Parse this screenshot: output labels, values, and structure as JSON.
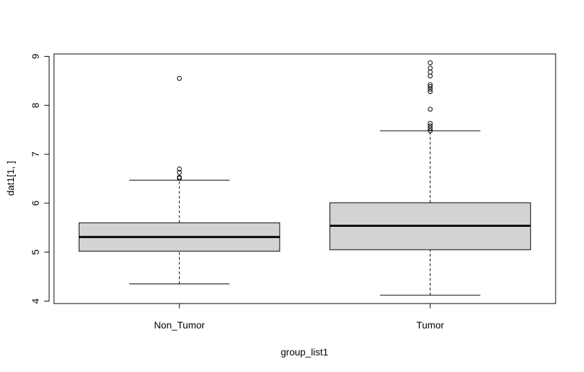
{
  "chart_data": {
    "type": "boxplot",
    "title": "",
    "xlabel": "group_list1",
    "ylabel": "dat1[1, ]",
    "ylim": [
      3.95,
      9.05
    ],
    "yticks": [
      "4",
      "5",
      "6",
      "7",
      "8",
      "9"
    ],
    "grid": false,
    "legend": "none",
    "box_fill": "#d3d3d3",
    "line_color": "#000000",
    "groups": [
      {
        "label": "Non_Tumor",
        "whisker_low": 4.35,
        "q1": 5.02,
        "median": 5.31,
        "q3": 5.6,
        "whisker_high": 6.47,
        "outliers": [
          6.51,
          6.53,
          6.63,
          6.7,
          8.55
        ]
      },
      {
        "label": "Tumor",
        "whisker_low": 4.12,
        "q1": 5.05,
        "median": 5.54,
        "q3": 6.01,
        "whisker_high": 7.48,
        "outliers": [
          7.48,
          7.53,
          7.58,
          7.63,
          7.92,
          8.28,
          8.33,
          8.38,
          8.42,
          8.6,
          8.68,
          8.76,
          8.87
        ]
      }
    ]
  }
}
